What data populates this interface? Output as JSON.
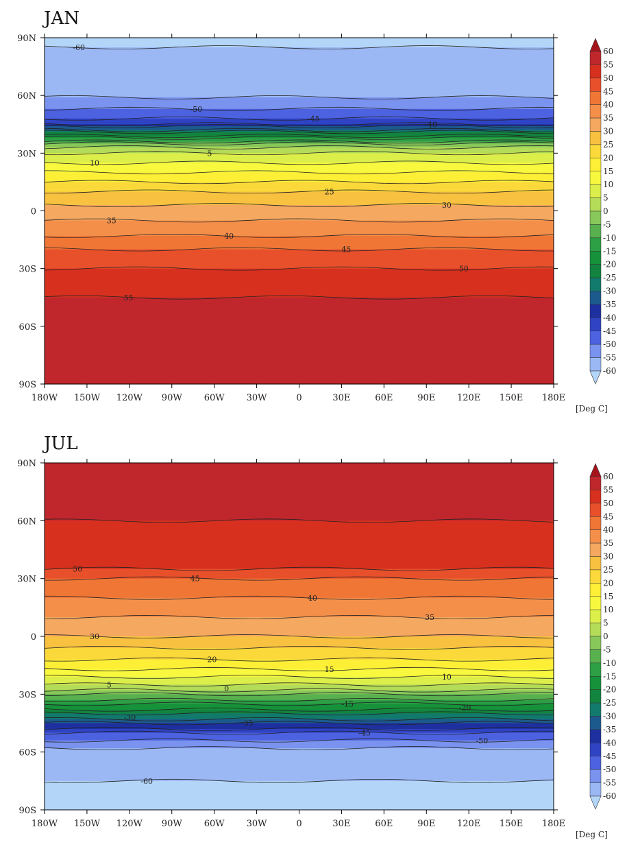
{
  "chart_data": [
    {
      "type": "heatmap",
      "title": "JAN",
      "units": "[Deg C]",
      "xticks": [
        "180W",
        "150W",
        "120W",
        "90W",
        "60W",
        "30W",
        "0",
        "30E",
        "60E",
        "90E",
        "120E",
        "150E",
        "180E"
      ],
      "yticks": [
        "90N",
        "60N",
        "30N",
        "0",
        "30S",
        "60S",
        "90S"
      ],
      "xlim": [
        -180,
        180
      ],
      "ylim": [
        -90,
        90
      ],
      "zonal_profile": {
        "lat": [
          90,
          75,
          60,
          50,
          45,
          40,
          35,
          30,
          20,
          10,
          0,
          -10,
          -20,
          -30,
          -45,
          -60,
          -75,
          -90
        ],
        "value": [
          -61,
          -58,
          -56,
          -48,
          -40,
          -22,
          -5,
          5,
          15,
          25,
          32,
          38,
          45,
          50,
          55,
          56,
          55,
          55
        ]
      },
      "contour_labels": [
        "-60",
        "-50",
        "-45",
        "-40",
        "10",
        "5",
        "25",
        "30",
        "35",
        "40",
        "45",
        "50",
        "55"
      ]
    },
    {
      "type": "heatmap",
      "title": "JUL",
      "units": "[Deg C]",
      "xticks": [
        "180W",
        "150W",
        "120W",
        "90W",
        "60W",
        "30W",
        "0",
        "30E",
        "60E",
        "90E",
        "120E",
        "150E",
        "180E"
      ],
      "yticks": [
        "90N",
        "60N",
        "30N",
        "0",
        "30S",
        "60S",
        "90S"
      ],
      "xlim": [
        -180,
        180
      ],
      "ylim": [
        -90,
        90
      ],
      "zonal_profile": {
        "lat": [
          90,
          75,
          60,
          45,
          35,
          30,
          20,
          10,
          0,
          -10,
          -20,
          -25,
          -30,
          -35,
          -40,
          -45,
          -50,
          -55,
          -60,
          -75,
          -90
        ],
        "value": [
          56,
          56,
          55,
          54,
          50,
          45,
          40,
          35,
          30,
          22,
          12,
          5,
          -5,
          -15,
          -25,
          -35,
          -45,
          -52,
          -57,
          -60,
          -61
        ]
      },
      "contour_labels": [
        "50",
        "45",
        "40",
        "35",
        "30",
        "20",
        "15",
        "10",
        "5",
        "0",
        "-15",
        "-20",
        "-30",
        "-35",
        "-45",
        "-50",
        "-60"
      ]
    }
  ],
  "colorbar": {
    "units": "[Deg C]",
    "levels": [
      60,
      55,
      50,
      45,
      40,
      35,
      30,
      25,
      20,
      15,
      10,
      5,
      0,
      -5,
      -10,
      -15,
      -20,
      -25,
      -30,
      -35,
      -40,
      -45,
      -50,
      -55,
      -60
    ],
    "colors": [
      "#a3141b",
      "#c0272d",
      "#d7301f",
      "#e8502b",
      "#f07636",
      "#f48f4a",
      "#f5a860",
      "#f8c140",
      "#fbd93a",
      "#fdee36",
      "#f8f83e",
      "#dcee4a",
      "#b5dc58",
      "#88c85a",
      "#58b14e",
      "#2d9f45",
      "#15923a",
      "#12843f",
      "#127a6c",
      "#1c5a8e",
      "#1e30a0",
      "#2f43c4",
      "#4c62e0",
      "#7a93ef",
      "#9bb8f5",
      "#b3d5f8"
    ]
  }
}
